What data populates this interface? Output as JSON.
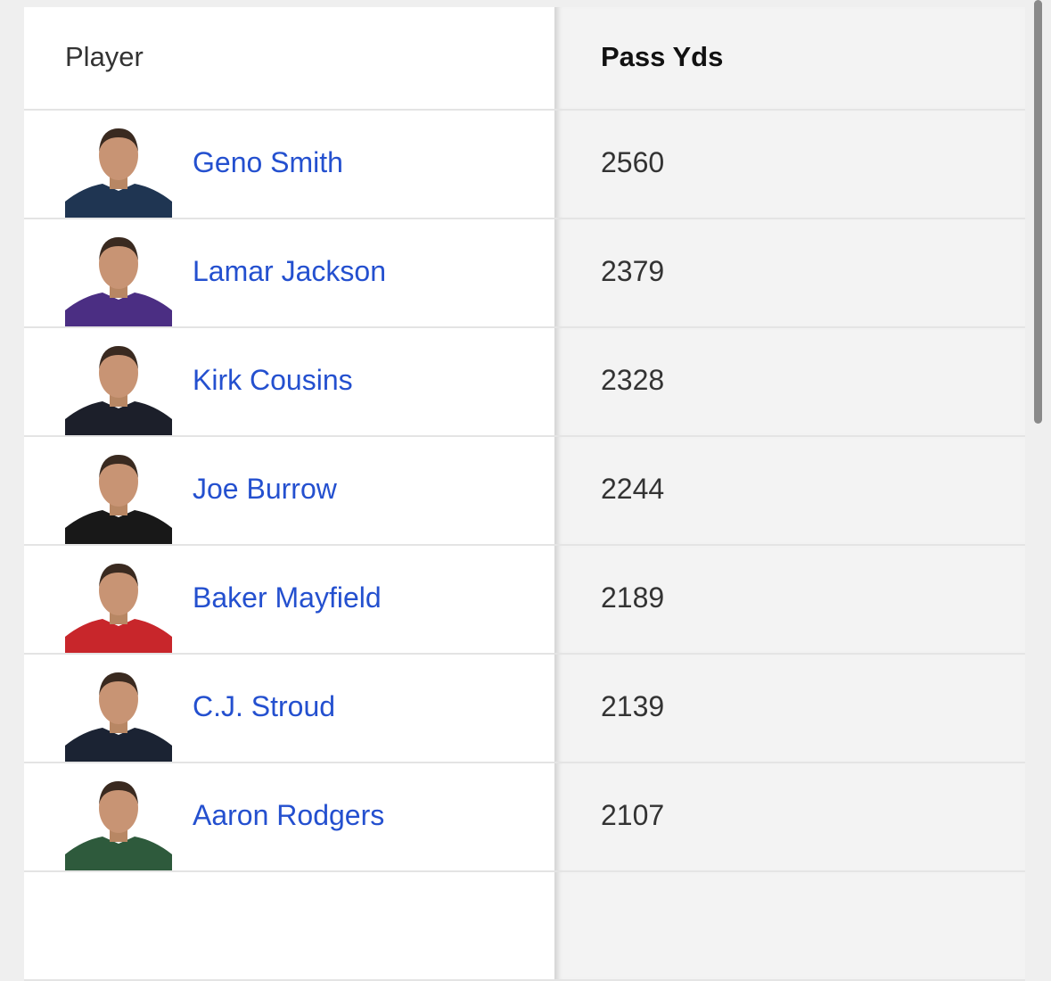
{
  "table": {
    "header": [
      "Player",
      "Pass Yds"
    ],
    "rows": [
      {
        "player": "Geno Smith",
        "pass_yds": 2560
      },
      {
        "player": "Lamar Jackson",
        "pass_yds": 2379
      },
      {
        "player": "Kirk Cousins",
        "pass_yds": 2328
      },
      {
        "player": "Joe Burrow",
        "pass_yds": 2244
      },
      {
        "player": "Baker Mayfield",
        "pass_yds": 2189
      },
      {
        "player": "C.J. Stroud",
        "pass_yds": 2139
      },
      {
        "player": "Aaron Rodgers",
        "pass_yds": 2107
      }
    ]
  }
}
